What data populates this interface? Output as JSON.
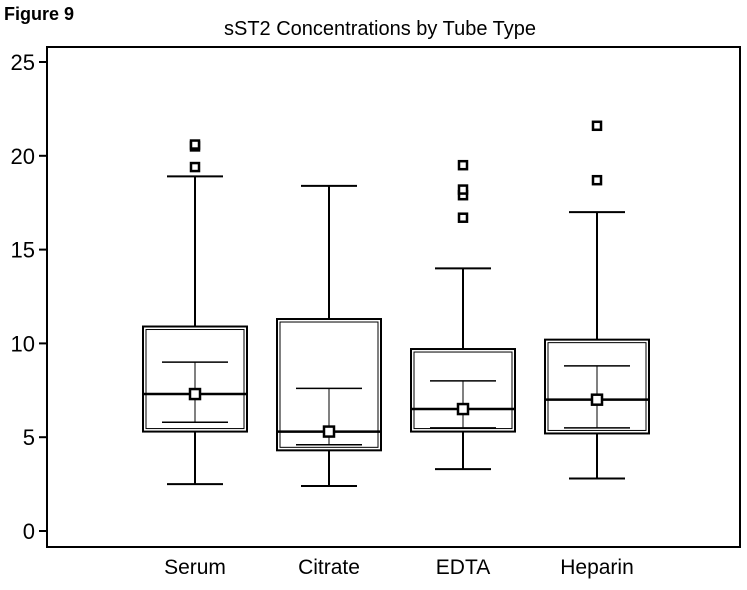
{
  "figure_label": "Figure 9",
  "chart_data": {
    "type": "boxplot",
    "title": "sST2 Concentrations by Tube Type",
    "xlabel": "",
    "ylabel": "",
    "ylim": [
      0,
      25
    ],
    "yticks": [
      0,
      5,
      10,
      15,
      20,
      25
    ],
    "categories": [
      "Serum",
      "Citrate",
      "EDTA",
      "Heparin"
    ],
    "boxes": [
      {
        "name": "Serum",
        "whisker_low": 2.5,
        "q1": 5.3,
        "median": 7.3,
        "q3": 10.9,
        "whisker_high": 18.9,
        "ci_low": 5.8,
        "ci_high": 9.0,
        "mean": 7.3,
        "outliers": [
          19.4,
          20.5,
          20.6
        ]
      },
      {
        "name": "Citrate",
        "whisker_low": 2.4,
        "q1": 4.3,
        "median": 5.3,
        "q3": 11.3,
        "whisker_high": 18.4,
        "ci_low": 4.6,
        "ci_high": 7.6,
        "mean": 5.3,
        "outliers": []
      },
      {
        "name": "EDTA",
        "whisker_low": 3.3,
        "q1": 5.3,
        "median": 6.5,
        "q3": 9.7,
        "whisker_high": 14.0,
        "ci_low": 5.5,
        "ci_high": 8.0,
        "mean": 6.5,
        "outliers": [
          16.7,
          17.9,
          18.2,
          19.5
        ]
      },
      {
        "name": "Heparin",
        "whisker_low": 2.8,
        "q1": 5.2,
        "median": 7.0,
        "q3": 10.2,
        "whisker_high": 17.0,
        "ci_low": 5.5,
        "ci_high": 8.8,
        "mean": 7.0,
        "outliers": [
          18.7,
          21.6
        ]
      }
    ]
  }
}
